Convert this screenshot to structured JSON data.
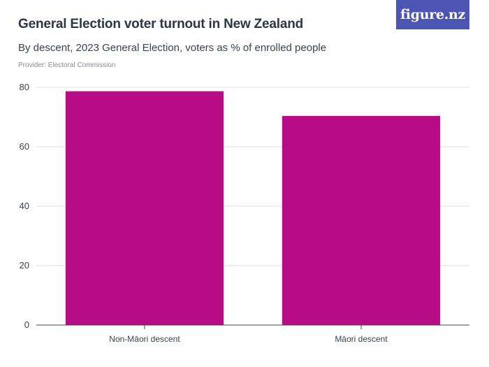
{
  "header": {
    "title": "General Election voter turnout in New Zealand",
    "subtitle": "By descent, 2023 General Election, voters as % of enrolled people",
    "provider": "Provider: Electoral Commission",
    "logo_text": "figure.nz"
  },
  "colors": {
    "bar": "#b80b86",
    "grid": "#dddddd",
    "axis": "#444444",
    "logo_bg": "#4d55b3"
  },
  "chart_data": {
    "type": "bar",
    "categories": [
      "Non-Māori descent",
      "Māori descent"
    ],
    "values": [
      78.7,
      70.4
    ],
    "title": "General Election voter turnout in New Zealand",
    "subtitle": "By descent, 2023 General Election, voters as % of enrolled people",
    "xlabel": "",
    "ylabel": "",
    "ylim": [
      0,
      80
    ],
    "yticks": [
      0,
      20,
      40,
      60,
      80
    ],
    "grid": true,
    "legend": "none"
  }
}
